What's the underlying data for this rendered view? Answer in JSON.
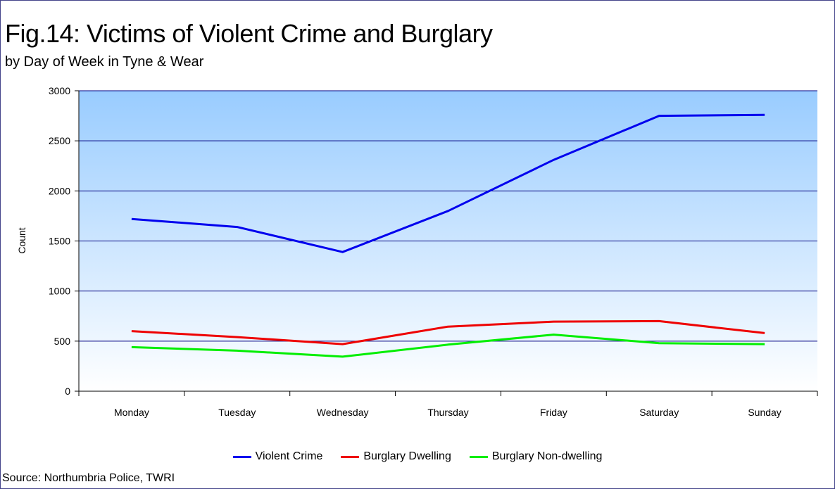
{
  "header": {
    "title": "Fig.14: Victims of Violent Crime and Burglary",
    "subtitle": "by Day of Week in Tyne & Wear"
  },
  "footer": {
    "source": "Source: Northumbria Police, TWRI"
  },
  "chart_data": {
    "type": "line",
    "title": "Fig.14: Victims of Violent Crime and Burglary",
    "subtitle": "by Day of Week in Tyne & Wear",
    "xlabel": "",
    "ylabel": "Count",
    "ylim": [
      0,
      3000
    ],
    "yticks": [
      0,
      500,
      1000,
      1500,
      2000,
      2500,
      3000
    ],
    "grid": true,
    "legend": "bottom",
    "categories": [
      "Monday",
      "Tuesday",
      "Wednesday",
      "Thursday",
      "Friday",
      "Saturday",
      "Sunday"
    ],
    "series": [
      {
        "name": "Violent Crime",
        "color": "#0000ee",
        "values": [
          1720,
          1640,
          1390,
          1800,
          2310,
          2750,
          2760
        ]
      },
      {
        "name": "Burglary Dwelling",
        "color": "#ee0000",
        "values": [
          600,
          540,
          470,
          645,
          695,
          700,
          580
        ]
      },
      {
        "name": "Burglary Non-dwelling",
        "color": "#00ee00",
        "values": [
          440,
          405,
          345,
          465,
          565,
          480,
          470
        ]
      }
    ],
    "plot_background": [
      "#99ccff",
      "#ffffff"
    ],
    "gridline_color": "#000080"
  }
}
